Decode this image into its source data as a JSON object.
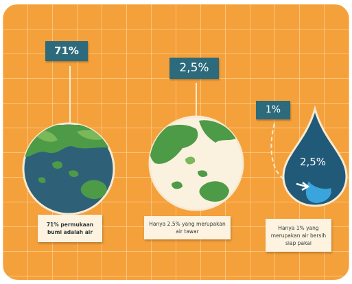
{
  "stats": [
    {
      "value": "71%",
      "caption": "71% permukaan bumi adalah air"
    },
    {
      "value": "2,5%",
      "caption": "Hanya 2.5% yang merupakan air tawar"
    },
    {
      "value": "1%",
      "drop_value": "2,5%",
      "caption": "Hanya 1% yang merupakan air bersih siap pakai"
    }
  ],
  "colors": {
    "background": "#f5a13b",
    "flag": "#2c6a7c",
    "ocean": "#2e6178",
    "land": "#4d9b47",
    "land_light": "#7ab85a",
    "fresh_water_drop": "#215a78",
    "clean_water": "#3aa5dc",
    "caption_card": "#fdf3e0"
  },
  "icons": [
    "earth-globe-icon",
    "earth-globe-icon",
    "water-drop-icon"
  ]
}
